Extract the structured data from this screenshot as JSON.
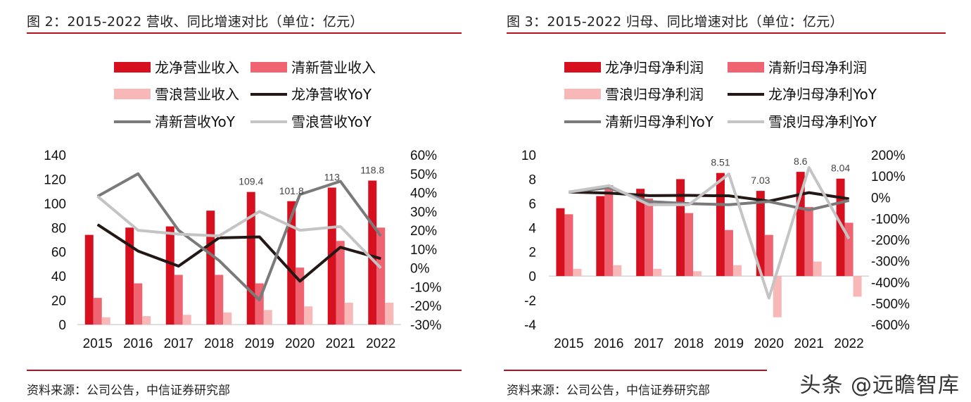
{
  "watermark": "头条 @远瞻智库",
  "colors": {
    "rule": "#b3121e",
    "long_bar": "#d6101f",
    "qingxin_bar": "#f06471",
    "xuelang_bar": "#f8b8b8",
    "long_line": "#231815",
    "qingxin_line": "#7a7a7a",
    "xuelang_line": "#c4c4c4"
  },
  "left": {
    "title": "图 2：2015-2022 营收、同比增速对比（单位：亿元）",
    "source": "资料来源：公司公告，中信证券研究部"
  },
  "right": {
    "title": "图 3：2015-2022 归母、同比增速对比（单位：亿元）",
    "source": "资料来源：公司公告，中信证券研究部"
  },
  "chart_data": [
    {
      "type": "bar",
      "categories": [
        "2015",
        "2016",
        "2017",
        "2018",
        "2019",
        "2020",
        "2021",
        "2022"
      ],
      "series": [
        {
          "name": "龙净营业收入",
          "kind": "bar",
          "axis": "left",
          "color_key": "long_bar",
          "values": [
            74,
            80,
            81,
            94,
            109.4,
            101.8,
            113,
            118.8
          ]
        },
        {
          "name": "清新营业收入",
          "kind": "bar",
          "axis": "left",
          "color_key": "qingxin_bar",
          "values": [
            22,
            34,
            41,
            41,
            34,
            47,
            69,
            80
          ]
        },
        {
          "name": "雪浪营业收入",
          "kind": "bar",
          "axis": "left",
          "color_key": "xuelang_bar",
          "values": [
            6,
            7,
            8,
            10,
            12,
            15,
            18,
            18
          ]
        },
        {
          "name": "龙净营收YoY",
          "kind": "line",
          "axis": "right",
          "color_key": "long_line",
          "values": [
            23,
            9,
            1,
            16,
            16.5,
            -7,
            11,
            5
          ]
        },
        {
          "name": "清新营收YoY",
          "kind": "line",
          "axis": "right",
          "color_key": "qingxin_line",
          "values": [
            38,
            50,
            20,
            4,
            -17,
            39,
            46,
            17
          ]
        },
        {
          "name": "雪浪营收YoY",
          "kind": "line",
          "axis": "right",
          "color_key": "xuelang_line",
          "values": [
            38,
            20,
            18,
            17,
            30,
            20,
            22,
            0
          ]
        }
      ],
      "bar_labels": [
        {
          "series": 0,
          "index": 4,
          "text": "109.4"
        },
        {
          "series": 0,
          "index": 5,
          "text": "101.8"
        },
        {
          "series": 0,
          "index": 6,
          "text": "113"
        },
        {
          "series": 0,
          "index": 7,
          "text": "118.8"
        }
      ],
      "y_left": {
        "min": 0,
        "max": 140,
        "step": 20,
        "ticks": [
          "0",
          "20",
          "40",
          "60",
          "80",
          "100",
          "120",
          "140"
        ]
      },
      "y_right": {
        "min": -30,
        "max": 60,
        "step": 10,
        "ticks": [
          "-30%",
          "-20%",
          "-10%",
          "0%",
          "10%",
          "20%",
          "30%",
          "40%",
          "50%",
          "60%"
        ]
      },
      "legend_rows": [
        [
          0,
          1
        ],
        [
          2,
          3
        ],
        [
          4,
          5
        ]
      ],
      "legend_position": "top",
      "grid": false
    },
    {
      "type": "bar",
      "categories": [
        "2015",
        "2016",
        "2017",
        "2018",
        "2019",
        "2020",
        "2021",
        "2022"
      ],
      "series": [
        {
          "name": "龙净归母净利润",
          "kind": "bar",
          "axis": "left",
          "color_key": "long_bar",
          "values": [
            5.6,
            6.6,
            7.2,
            8.0,
            8.51,
            7.03,
            8.6,
            8.04
          ]
        },
        {
          "name": "清新归母净利润",
          "kind": "bar",
          "axis": "left",
          "color_key": "qingxin_bar",
          "values": [
            5.1,
            7.5,
            6.4,
            5.2,
            3.8,
            3.4,
            5.7,
            4.4
          ]
        },
        {
          "name": "雪浪归母净利润",
          "kind": "bar",
          "axis": "left",
          "color_key": "xuelang_bar",
          "values": [
            0.6,
            0.9,
            0.6,
            0.4,
            0.9,
            -3.4,
            1.2,
            -1.7
          ]
        },
        {
          "name": "龙净归母净利YoY",
          "kind": "line",
          "axis": "right",
          "color_key": "long_line",
          "values": [
            25,
            20,
            8,
            9,
            7,
            -18,
            22,
            -7
          ]
        },
        {
          "name": "清新归母净利YoY",
          "kind": "line",
          "axis": "right",
          "color_key": "qingxin_line",
          "values": [
            25,
            45,
            -20,
            -30,
            -35,
            -20,
            -60,
            -15
          ]
        },
        {
          "name": "雪浪归母净利YoY",
          "kind": "line",
          "axis": "right",
          "color_key": "xuelang_line",
          "values": [
            25,
            55,
            -35,
            -35,
            110,
            -475,
            140,
            -195
          ]
        }
      ],
      "bar_labels": [
        {
          "series": 0,
          "index": 4,
          "text": "8.51"
        },
        {
          "series": 0,
          "index": 5,
          "text": "7.03"
        },
        {
          "series": 0,
          "index": 6,
          "text": "8.6"
        },
        {
          "series": 0,
          "index": 7,
          "text": "8.04"
        }
      ],
      "y_left": {
        "min": -4,
        "max": 10,
        "step": 2,
        "ticks": [
          "-4",
          "-2",
          "0",
          "2",
          "4",
          "6",
          "8",
          "10"
        ]
      },
      "y_right": {
        "min": -600,
        "max": 200,
        "step": 100,
        "ticks": [
          "-600%",
          "-500%",
          "-400%",
          "-300%",
          "-200%",
          "-100%",
          "0%",
          "100%",
          "200%"
        ]
      },
      "legend_rows": [
        [
          0,
          1
        ],
        [
          2,
          3
        ],
        [
          4,
          5
        ]
      ],
      "legend_position": "top",
      "grid": false
    }
  ]
}
